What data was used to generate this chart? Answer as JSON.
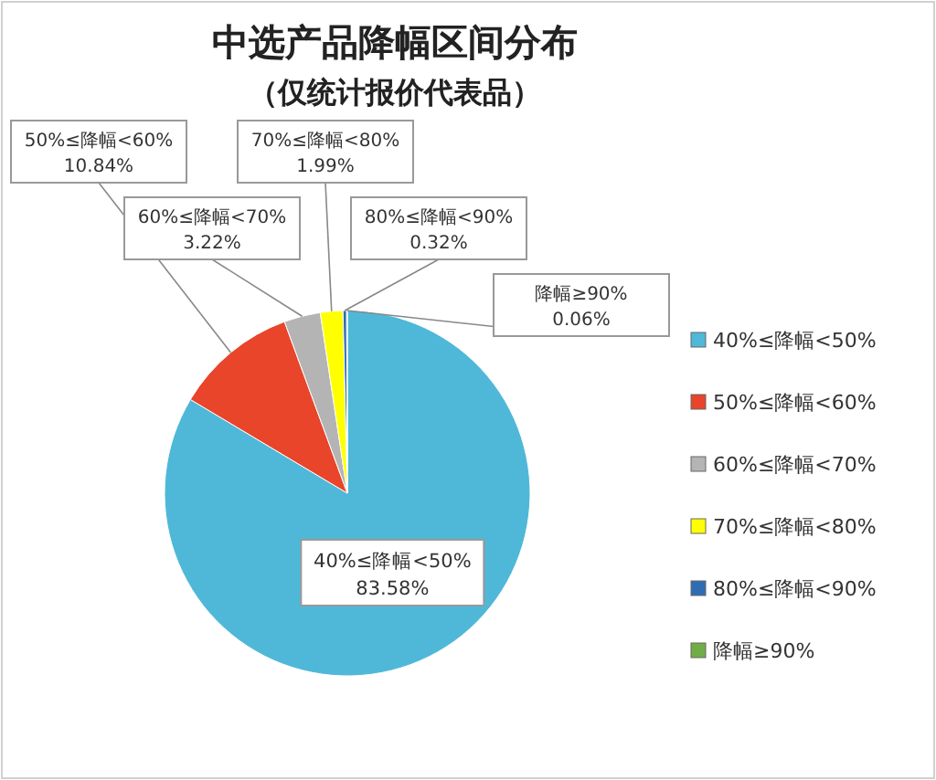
{
  "chart_data": {
    "type": "pie",
    "title": "中选产品降幅区间分布",
    "subtitle": "（仅统计报价代表品）",
    "categories": [
      "40%≤降幅<50%",
      "50%≤降幅<60%",
      "60%≤降幅<70%",
      "70%≤降幅<80%",
      "80%≤降幅<90%",
      "降幅≥90%"
    ],
    "values": [
      83.58,
      10.84,
      3.22,
      1.99,
      0.32,
      0.06
    ],
    "value_labels": [
      "83.58%",
      "10.84%",
      "3.22%",
      "1.99%",
      "0.32%",
      "0.06%"
    ],
    "colors": [
      "#4fb8d8",
      "#e8452a",
      "#b4b4b4",
      "#ffff00",
      "#2e6db4",
      "#70ad47"
    ],
    "legend": "right"
  }
}
